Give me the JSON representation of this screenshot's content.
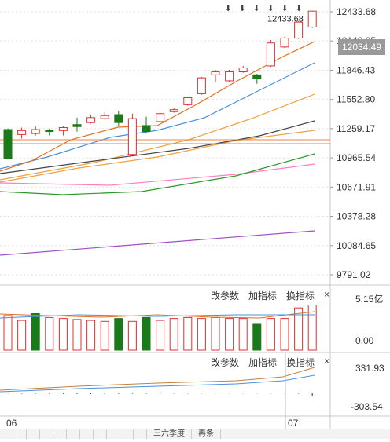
{
  "price_axis": {
    "labels": [
      "12433.68",
      "12140.95",
      "11846.43",
      "11552.80",
      "11259.17",
      "10965.54",
      "10671.91",
      "10378.28",
      "10084.65",
      "9791.02"
    ],
    "current_price": "12034.49"
  },
  "high_annotation": "12433.68",
  "markers": [
    "⬇",
    "⬇",
    "⬇",
    "⬇",
    "⬇",
    "⬇"
  ],
  "volume_panel": {
    "buttons": [
      "改参数",
      "加指标",
      "换指标"
    ],
    "close": "×",
    "axis_labels": [
      "5.15亿",
      "0.00"
    ]
  },
  "macd_panel": {
    "buttons": [
      "改参数",
      "加指标",
      "换指标"
    ],
    "close": "×",
    "axis_labels": [
      "331.93",
      "-303.54"
    ]
  },
  "time_axis": {
    "labels": [
      "06",
      "07"
    ]
  },
  "tabs": [
    "",
    "",
    "",
    "",
    "",
    "",
    "",
    "",
    "",
    "",
    "",
    "三六季度",
    "再条"
  ],
  "colors": {
    "up": "#e03131",
    "down": "#1a7a1a",
    "ma5": "#e07020",
    "ma10": "#4a90d9",
    "ma20": "#f0a040",
    "ma30": "#444444",
    "ma60": "#2a9a2a",
    "ma120": "#ff80c0",
    "ma250": "#a050c0"
  },
  "chart_data": {
    "type": "candlestick",
    "price_min": 9791.02,
    "price_max": 12433.68,
    "candles": [
      {
        "o": 11250,
        "c": 10960,
        "h": 11260,
        "l": 10950
      },
      {
        "o": 11200,
        "c": 11240,
        "h": 11270,
        "l": 11160
      },
      {
        "o": 11210,
        "c": 11250,
        "h": 11290,
        "l": 11190
      },
      {
        "o": 11240,
        "c": 11230,
        "h": 11260,
        "l": 11190
      },
      {
        "o": 11240,
        "c": 11270,
        "h": 11290,
        "l": 11190
      },
      {
        "o": 11300,
        "c": 11280,
        "h": 11370,
        "l": 11230
      },
      {
        "o": 11320,
        "c": 11370,
        "h": 11400,
        "l": 11310
      },
      {
        "o": 11360,
        "c": 11390,
        "h": 11420,
        "l": 11350
      },
      {
        "o": 11400,
        "c": 11320,
        "h": 11440,
        "l": 11290
      },
      {
        "o": 11000,
        "c": 11360,
        "h": 11410,
        "l": 10990
      },
      {
        "o": 11290,
        "c": 11230,
        "h": 11380,
        "l": 11210
      },
      {
        "o": 11330,
        "c": 11410,
        "h": 11420,
        "l": 11320
      },
      {
        "o": 11430,
        "c": 11450,
        "h": 11470,
        "l": 11420
      },
      {
        "o": 11500,
        "c": 11570,
        "h": 11580,
        "l": 11490
      },
      {
        "o": 11610,
        "c": 11770,
        "h": 11780,
        "l": 11600
      },
      {
        "o": 11800,
        "c": 11830,
        "h": 11850,
        "l": 11730
      },
      {
        "o": 11740,
        "c": 11830,
        "h": 11850,
        "l": 11730
      },
      {
        "o": 11830,
        "c": 11870,
        "h": 11890,
        "l": 11820
      },
      {
        "o": 11800,
        "c": 11760,
        "h": 11810,
        "l": 11710
      },
      {
        "o": 11890,
        "c": 12120,
        "h": 12150,
        "l": 11880
      },
      {
        "o": 12080,
        "c": 12170,
        "h": 12180,
        "l": 12070
      },
      {
        "o": 12170,
        "c": 12330,
        "h": 12340,
        "l": 12160
      },
      {
        "o": 12280,
        "c": 12440,
        "h": 12445,
        "l": 12270
      }
    ],
    "volume": {
      "max": 5.15,
      "values": [
        3.6,
        3.1,
        3.8,
        3.4,
        3.3,
        3.2,
        3.1,
        3.0,
        3.3,
        3.0,
        3.4,
        3.1,
        3.3,
        3.4,
        3.3,
        3.4,
        3.3,
        3.3,
        2.7,
        3.3,
        3.3,
        4.4,
        4.7
      ],
      "down": [
        false,
        false,
        true,
        false,
        false,
        false,
        false,
        false,
        true,
        false,
        true,
        false,
        false,
        false,
        false,
        false,
        false,
        false,
        true,
        false,
        false,
        false,
        false
      ]
    },
    "macd": {
      "max": 331.93,
      "min": -303.54,
      "hist": [
        -5,
        -8,
        -10,
        -12,
        -14,
        -15,
        -16,
        -14,
        -12,
        -10,
        -9,
        -8,
        -7,
        -6,
        -5,
        -5,
        -5,
        -5,
        -5,
        -5,
        -5,
        -8,
        -60
      ]
    }
  }
}
